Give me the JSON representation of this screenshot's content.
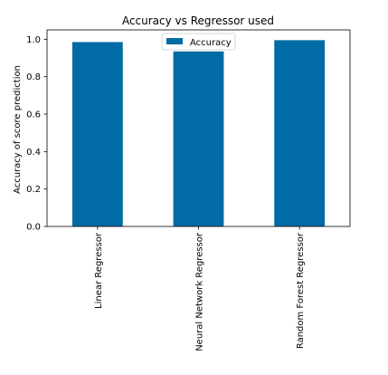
{
  "chart_data": {
    "type": "bar",
    "title": "Accuracy vs Regressor used",
    "xlabel": "",
    "ylabel": "Accuracy of score prediction",
    "categories": [
      "Linear Regressor",
      "Neural Network Regressor",
      "Random Forest Regressor"
    ],
    "series": [
      {
        "name": "Accuracy",
        "values": [
          0.985,
          0.935,
          0.995
        ],
        "color": "#006BA4"
      }
    ],
    "ylim": [
      0,
      1.05
    ],
    "yticks": [
      0.0,
      0.2,
      0.4,
      0.6,
      0.8,
      1.0
    ],
    "ytick_labels": [
      "0.0",
      "0.2",
      "0.4",
      "0.6",
      "0.8",
      "1.0"
    ],
    "grid": false,
    "legend": "upper-center"
  }
}
